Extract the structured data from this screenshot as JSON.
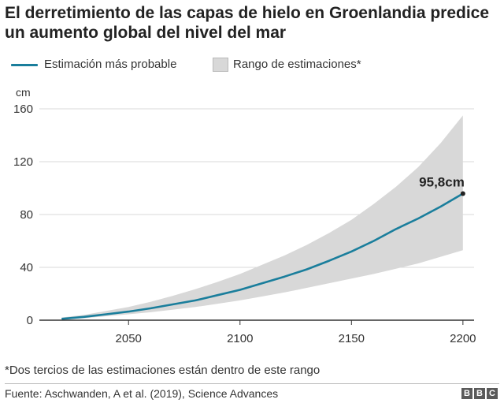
{
  "title": "El derretimiento de las capas de hielo en Groenlandia predice un aumento global del nivel del mar",
  "legend": {
    "line_label": "Estimación más probable",
    "range_label": "Rango de estimaciones*"
  },
  "colors": {
    "line": "#1a7e9c",
    "range": "#d8d8d8",
    "axis": "#333333",
    "grid": "#d9d9d9"
  },
  "chart_data": {
    "type": "line",
    "ylabel": "cm",
    "xlim": [
      2010,
      2205
    ],
    "ylim": [
      0,
      160
    ],
    "yticks": [
      0,
      40,
      80,
      120,
      160
    ],
    "xticks": [
      2050,
      2100,
      2150,
      2200
    ],
    "grid": true,
    "legend_position": "top-left",
    "x": [
      2020,
      2030,
      2040,
      2050,
      2060,
      2070,
      2080,
      2090,
      2100,
      2110,
      2120,
      2130,
      2140,
      2150,
      2160,
      2170,
      2180,
      2190,
      2200
    ],
    "series": [
      {
        "name": "Estimación más probable",
        "values": [
          1,
          2.5,
          4.5,
          6.5,
          9,
          12,
          15,
          19,
          23,
          28,
          33,
          38.5,
          45,
          52,
          60,
          69,
          77,
          86,
          95.8
        ]
      },
      {
        "name": "Rango de estimaciones*",
        "lower": [
          0.5,
          1.5,
          3,
          4.5,
          6,
          8,
          10,
          12.5,
          15,
          18,
          21,
          24.5,
          28,
          31.5,
          35,
          39,
          43,
          48,
          53
        ],
        "upper": [
          2,
          4,
          7,
          10,
          14,
          18.5,
          23.5,
          29,
          35,
          42,
          49,
          57,
          66,
          76,
          88,
          101,
          116,
          134,
          155
        ]
      }
    ],
    "annotations": [
      {
        "x": 2200,
        "y": 95.8,
        "text": "95,8cm"
      }
    ]
  },
  "footnote": "*Dos tercios de las estimaciones están dentro de este rango",
  "source": "Fuente: Aschwanden, A et al. (2019), Science Advances",
  "logo": [
    "B",
    "B",
    "C"
  ]
}
